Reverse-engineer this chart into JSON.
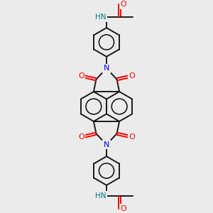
{
  "background_color": "#ebebeb",
  "bond_color": "#1a1a1a",
  "nitrogen_color": "#0000ff",
  "oxygen_color": "#ff0000",
  "nh_color": "#008080",
  "line_width": 1.4,
  "figsize": [
    3.0,
    3.0
  ],
  "dpi": 100,
  "xlim": [
    0,
    10
  ],
  "ylim": [
    0,
    10
  ]
}
